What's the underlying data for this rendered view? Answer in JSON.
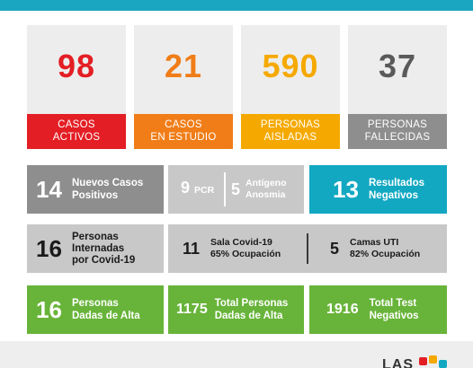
{
  "colors": {
    "topbar": "#1aa5c0",
    "red": "#e31e24",
    "orange": "#f07d17",
    "yellow": "#f5a900",
    "gray": "#8e8e8e",
    "dark_gray": "#5a5a5a",
    "cyan": "#12a8c2",
    "light_gray": "#c8c8c8",
    "green": "#68b43a"
  },
  "stats": [
    {
      "value": "98",
      "label_1": "CASOS",
      "label_2": "ACTIVOS"
    },
    {
      "value": "21",
      "label_1": "CASOS",
      "label_2": "EN ESTUDIO"
    },
    {
      "value": "590",
      "label_1": "PERSONAS",
      "label_2": "AISLADAS"
    },
    {
      "value": "37",
      "label_1": "PERSONAS",
      "label_2": "FALLECIDAS"
    }
  ],
  "row2": {
    "nuevos": {
      "value": "14",
      "line_1": "Nuevos Casos",
      "line_2": "Positivos"
    },
    "pcr": {
      "value": "9",
      "label": "PCR"
    },
    "antigeno": {
      "value": "5",
      "line_1": "Antígeno",
      "line_2": "Anosmia"
    },
    "resultados": {
      "value": "13",
      "line_1": "Resultados",
      "line_2": "Negativos"
    }
  },
  "row3": {
    "internadas": {
      "value": "16",
      "line_1": "Personas",
      "line_2": "Internadas",
      "line_3": "por Covid-19"
    },
    "sala": {
      "value": "11",
      "line_1": "Sala Covid-19",
      "line_2": "65% Ocupación"
    },
    "uti": {
      "value": "5",
      "line_1": "Camas UTI",
      "line_2": "82% Ocupación"
    }
  },
  "row4": {
    "alta": {
      "value": "16",
      "line_1": "Personas",
      "line_2": "Dadas de Alta"
    },
    "total_alta": {
      "value": "1175",
      "line_1": "Total Personas",
      "line_2": "Dadas de Alta"
    },
    "total_test": {
      "value": "1916",
      "line_1": "Total Test",
      "line_2": "Negativos"
    }
  },
  "footer": {
    "logo_text": "LAS"
  }
}
